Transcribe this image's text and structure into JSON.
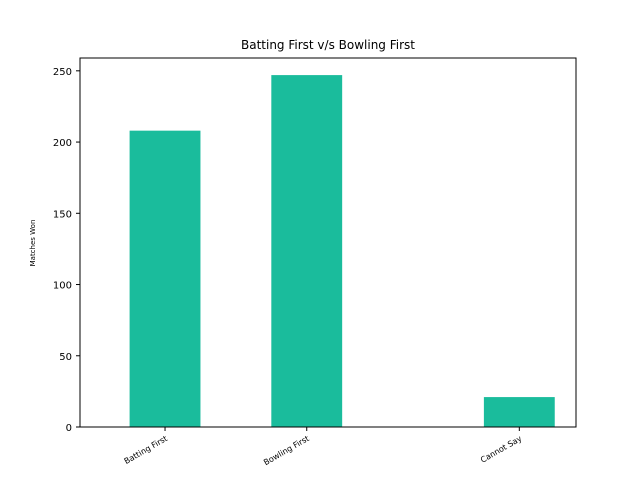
{
  "chart_data": {
    "type": "bar",
    "title": "Batting First v/s Bowling First",
    "xlabel": "",
    "ylabel": "Matches Won",
    "categories": [
      "Batting First",
      "Bowling First",
      "Cannot Say"
    ],
    "x_positions": [
      0,
      1,
      2.5
    ],
    "values": [
      208,
      247,
      21
    ],
    "ylim": [
      0,
      259
    ],
    "xlim": [
      -0.6,
      2.9
    ],
    "yticks": [
      0,
      50,
      100,
      150,
      200,
      250
    ],
    "bar_color": "#1abc9c",
    "grid": false,
    "legend": "none",
    "xtick_rotation": 30
  }
}
